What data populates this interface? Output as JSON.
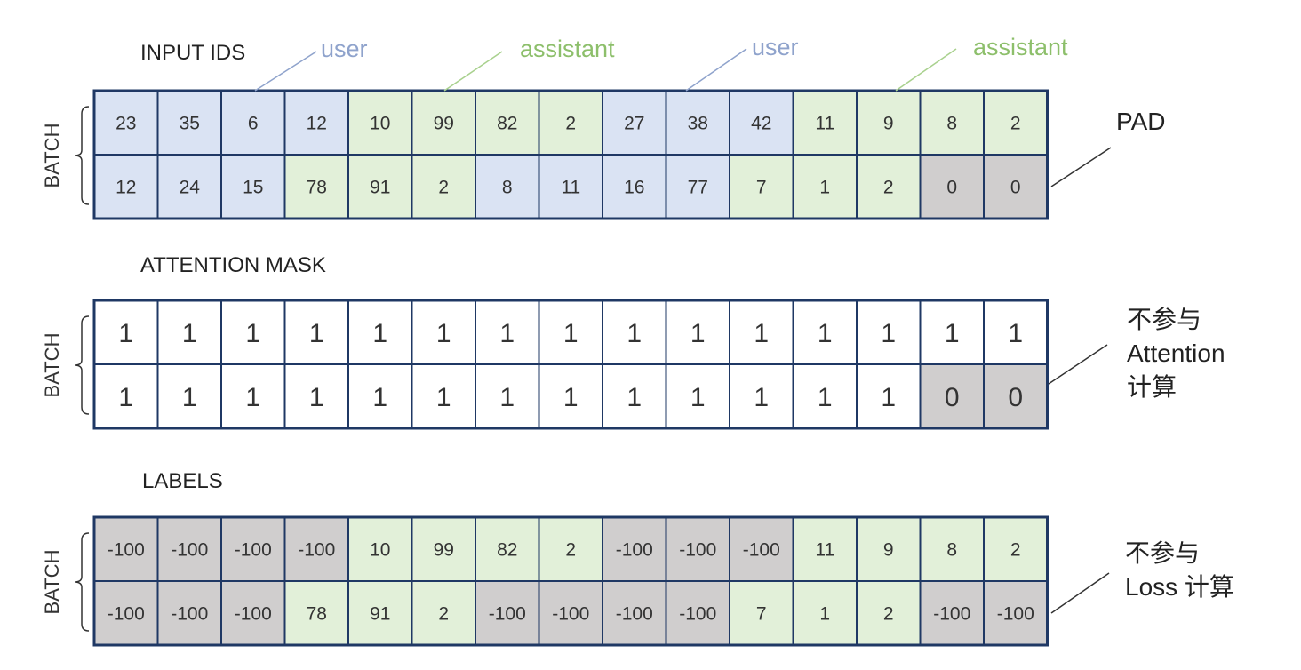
{
  "colors": {
    "user": "#dae3f3",
    "assistant": "#e2f0d9",
    "pad": "#d0cece",
    "white": "#ffffff",
    "border": "#1f3864",
    "user_text": "#8fa3cc",
    "assistant_text": "#8dbf6b",
    "user_line": "#8fa3cc",
    "assistant_line": "#a9d18e"
  },
  "batch_label": "BATCH",
  "sections": [
    {
      "title": "INPUT IDS",
      "rows": [
        {
          "values": [
            "23",
            "35",
            "6",
            "12",
            "10",
            "99",
            "82",
            "2",
            "27",
            "38",
            "42",
            "11",
            "9",
            "8",
            "2"
          ],
          "fills": [
            "user",
            "user",
            "user",
            "user",
            "assistant",
            "assistant",
            "assistant",
            "assistant",
            "user",
            "user",
            "user",
            "assistant",
            "assistant",
            "assistant",
            "assistant"
          ]
        },
        {
          "values": [
            "12",
            "24",
            "15",
            "78",
            "91",
            "2",
            "8",
            "11",
            "16",
            "77",
            "7",
            "1",
            "2",
            "0",
            "0"
          ],
          "fills": [
            "user",
            "user",
            "user",
            "assistant",
            "assistant",
            "assistant",
            "user",
            "user",
            "user",
            "user",
            "assistant",
            "assistant",
            "assistant",
            "pad",
            "pad"
          ]
        }
      ],
      "annotation": "PAD"
    },
    {
      "title": "ATTENTION MASK",
      "rows": [
        {
          "values": [
            "1",
            "1",
            "1",
            "1",
            "1",
            "1",
            "1",
            "1",
            "1",
            "1",
            "1",
            "1",
            "1",
            "1",
            "1"
          ],
          "fills": [
            "white",
            "white",
            "white",
            "white",
            "white",
            "white",
            "white",
            "white",
            "white",
            "white",
            "white",
            "white",
            "white",
            "white",
            "white"
          ]
        },
        {
          "values": [
            "1",
            "1",
            "1",
            "1",
            "1",
            "1",
            "1",
            "1",
            "1",
            "1",
            "1",
            "1",
            "1",
            "0",
            "0"
          ],
          "fills": [
            "white",
            "white",
            "white",
            "white",
            "white",
            "white",
            "white",
            "white",
            "white",
            "white",
            "white",
            "white",
            "white",
            "pad",
            "pad"
          ]
        }
      ],
      "annotation_lines": [
        "不参与",
        "Attention",
        "计算"
      ]
    },
    {
      "title": "LABELS",
      "rows": [
        {
          "values": [
            "-100",
            "-100",
            "-100",
            "-100",
            "10",
            "99",
            "82",
            "2",
            "-100",
            "-100",
            "-100",
            "11",
            "9",
            "8",
            "2"
          ],
          "fills": [
            "pad",
            "pad",
            "pad",
            "pad",
            "assistant",
            "assistant",
            "assistant",
            "assistant",
            "pad",
            "pad",
            "pad",
            "assistant",
            "assistant",
            "assistant",
            "assistant"
          ]
        },
        {
          "values": [
            "-100",
            "-100",
            "-100",
            "78",
            "91",
            "2",
            "-100",
            "-100",
            "-100",
            "-100",
            "7",
            "1",
            "2",
            "-100",
            "-100"
          ],
          "fills": [
            "pad",
            "pad",
            "pad",
            "assistant",
            "assistant",
            "assistant",
            "pad",
            "pad",
            "pad",
            "pad",
            "assistant",
            "assistant",
            "assistant",
            "pad",
            "pad"
          ]
        }
      ],
      "annotation_lines": [
        "不参与",
        "Loss 计算"
      ]
    }
  ],
  "role_labels": [
    {
      "text": "user",
      "role": "user"
    },
    {
      "text": "assistant",
      "role": "assistant"
    },
    {
      "text": "user",
      "role": "user"
    },
    {
      "text": "assistant",
      "role": "assistant"
    }
  ]
}
